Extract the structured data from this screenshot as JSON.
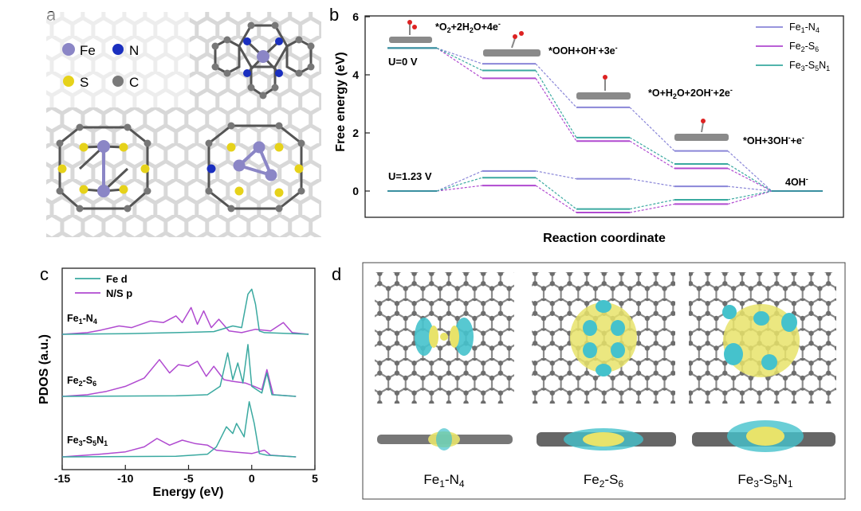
{
  "panels": {
    "a": "a",
    "b": "b",
    "c": "c",
    "d": "d"
  },
  "legend_a": {
    "fe": "Fe",
    "n": "N",
    "s": "S",
    "c": "C"
  },
  "colors": {
    "fe": "#8b86c6",
    "n": "#1a2fbf",
    "s": "#e6d21a",
    "c": "#7a7a7a",
    "fe1n4": "#8a86d8",
    "fe2s6": "#b04ad0",
    "fe3s5n1": "#3aa9a0",
    "fed": "#3aa9a0",
    "nsp": "#b04ad0",
    "iso_yellow": "#e8e36a",
    "iso_cyan": "#45c2cc"
  },
  "chart_data": [
    {
      "type": "line",
      "panel": "b",
      "title": "",
      "xlabel": "Reaction coordinate",
      "ylabel": "Free energy (eV)",
      "ylim": [
        -0.7,
        6
      ],
      "yticks": [
        0,
        2,
        4,
        6
      ],
      "steps": [
        "*O2+2H2O+4e-",
        "*OOH+OH-+3e-",
        "*O+H2O+2OH-+2e-",
        "*OH+3OH-+e-",
        "4OH-"
      ],
      "potential_labels": {
        "u0": "U=0 V",
        "u123": "U=1.23 V"
      },
      "step_labels": [
        {
          "base": "*O",
          "sub1": "2",
          "mid": "+2H",
          "sub2": "2",
          "tail": "O+4e",
          "sup": "-"
        },
        {
          "base": "*OOH+OH",
          "sup1": "-",
          "tail": "+3e",
          "sup2": "-"
        },
        {
          "base": "*O+H",
          "sub": "2",
          "mid": "O+2OH",
          "sup1": "-",
          "tail": "+2e",
          "sup2": "-"
        },
        {
          "base": "*OH+3OH",
          "sup1": "-",
          "tail": "+e",
          "sup2": "-"
        },
        {
          "base": "4OH",
          "sup": "-"
        }
      ],
      "series": [
        {
          "name": "Fe1-N4",
          "key": "fe1n4",
          "legend": {
            "a": "Fe",
            "b": "1",
            "c": "-N",
            "d": "4"
          },
          "u0": [
            4.92,
            4.38,
            2.88,
            1.38,
            0
          ],
          "u123": [
            0,
            0.69,
            0.42,
            0.16,
            0
          ]
        },
        {
          "name": "Fe2-S6",
          "key": "fe2s6",
          "legend": {
            "a": "Fe",
            "b": "2",
            "c": "-S",
            "d": "6"
          },
          "u0": [
            4.92,
            3.88,
            1.72,
            0.78,
            0
          ],
          "u123": [
            0,
            0.19,
            -0.74,
            -0.45,
            0
          ]
        },
        {
          "name": "Fe3-S5N1",
          "key": "fe3s5n1",
          "legend": {
            "a": "Fe",
            "b": "3",
            "c": "-S",
            "d": "5",
            "e": "N",
            "f": "1"
          },
          "u0": [
            4.92,
            4.15,
            1.84,
            0.93,
            0
          ],
          "u123": [
            0,
            0.46,
            -0.62,
            -0.3,
            0
          ]
        }
      ]
    },
    {
      "type": "line",
      "panel": "c",
      "xlabel": "Energy (eV)",
      "ylabel": "PDOS (a.u.)",
      "xlim": [
        -15,
        5
      ],
      "xticks": [
        -15,
        -10,
        -5,
        0,
        5
      ],
      "legend": [
        "Fe d",
        "N/S p"
      ],
      "systems": [
        {
          "label": {
            "a": "Fe",
            "b": "1",
            "c": "-N",
            "d": "4"
          },
          "fed": [
            [
              -15,
              0
            ],
            [
              -10,
              0.02
            ],
            [
              -6,
              0.05
            ],
            [
              -3,
              0.08
            ],
            [
              -1.5,
              0.25
            ],
            [
              -0.8,
              0.2
            ],
            [
              -0.3,
              1.2
            ],
            [
              0,
              1.35
            ],
            [
              0.3,
              0.9
            ],
            [
              0.6,
              0.1
            ],
            [
              1,
              0.05
            ],
            [
              4.5,
              0
            ]
          ],
          "nsp": [
            [
              -15,
              0
            ],
            [
              -13,
              0.05
            ],
            [
              -12,
              0.12
            ],
            [
              -10.5,
              0.25
            ],
            [
              -9.5,
              0.2
            ],
            [
              -8,
              0.4
            ],
            [
              -7,
              0.35
            ],
            [
              -6,
              0.55
            ],
            [
              -5.5,
              0.35
            ],
            [
              -4.8,
              0.8
            ],
            [
              -4.3,
              0.3
            ],
            [
              -3.8,
              0.7
            ],
            [
              -3.2,
              0.2
            ],
            [
              -2.6,
              0.45
            ],
            [
              -1.8,
              0.1
            ],
            [
              -0.8,
              0.05
            ],
            [
              0.3,
              0.15
            ],
            [
              1.5,
              0.1
            ],
            [
              2.5,
              0.35
            ],
            [
              3.2,
              0.05
            ],
            [
              4.5,
              0
            ]
          ]
        },
        {
          "label": {
            "a": "Fe",
            "b": "2",
            "c": "-S",
            "d": "6"
          },
          "fed": [
            [
              -15,
              0
            ],
            [
              -6,
              0.02
            ],
            [
              -3.5,
              0.05
            ],
            [
              -2.5,
              0.3
            ],
            [
              -1.9,
              1.3
            ],
            [
              -1.5,
              0.5
            ],
            [
              -1.1,
              1.0
            ],
            [
              -0.7,
              0.4
            ],
            [
              -0.3,
              1.55
            ],
            [
              0,
              0.3
            ],
            [
              0.4,
              0.2
            ],
            [
              0.8,
              0.1
            ],
            [
              1.2,
              0.7
            ],
            [
              1.6,
              0.05
            ],
            [
              3.5,
              0
            ]
          ],
          "nsp": [
            [
              -15,
              0
            ],
            [
              -13,
              0.05
            ],
            [
              -11.5,
              0.15
            ],
            [
              -10,
              0.3
            ],
            [
              -8.5,
              0.55
            ],
            [
              -7.3,
              1.1
            ],
            [
              -6.5,
              0.7
            ],
            [
              -5.8,
              0.95
            ],
            [
              -5,
              0.9
            ],
            [
              -4.3,
              1.05
            ],
            [
              -3.6,
              0.6
            ],
            [
              -3,
              0.9
            ],
            [
              -2.2,
              0.5
            ],
            [
              -1.5,
              0.45
            ],
            [
              -0.5,
              0.4
            ],
            [
              0.2,
              0.3
            ],
            [
              0.8,
              0.2
            ],
            [
              1.2,
              0.8
            ],
            [
              1.7,
              0.05
            ],
            [
              3.5,
              0
            ]
          ]
        },
        {
          "label": {
            "a": "Fe",
            "b": "3",
            "c": "-S",
            "d": "5",
            "e": "N",
            "f": "1"
          },
          "fed": [
            [
              -15,
              0
            ],
            [
              -6,
              0.02
            ],
            [
              -3.5,
              0.08
            ],
            [
              -2.8,
              0.3
            ],
            [
              -2,
              0.9
            ],
            [
              -1.5,
              0.7
            ],
            [
              -1.2,
              1.0
            ],
            [
              -0.6,
              0.6
            ],
            [
              -0.2,
              1.65
            ],
            [
              0.2,
              1.0
            ],
            [
              0.6,
              0.1
            ],
            [
              1.2,
              0.05
            ],
            [
              3.5,
              0
            ]
          ],
          "nsp": [
            [
              -15,
              0
            ],
            [
              -12,
              0.08
            ],
            [
              -10,
              0.15
            ],
            [
              -8.5,
              0.3
            ],
            [
              -7.5,
              0.55
            ],
            [
              -6.5,
              0.35
            ],
            [
              -5.5,
              0.5
            ],
            [
              -4.5,
              0.4
            ],
            [
              -3.5,
              0.35
            ],
            [
              -2.8,
              0.2
            ],
            [
              -1.5,
              0.15
            ],
            [
              0,
              0.1
            ],
            [
              1,
              0.2
            ],
            [
              1.5,
              0.05
            ],
            [
              3.5,
              0
            ]
          ]
        }
      ]
    }
  ],
  "panel_d": {
    "captions": [
      {
        "a": "Fe",
        "b": "1",
        "c": "-N",
        "d": "4"
      },
      {
        "a": "Fe",
        "b": "2",
        "c": "-S",
        "d": "6"
      },
      {
        "a": "Fe",
        "b": "3",
        "c": "-S",
        "d": "5",
        "e": "N",
        "f": "1"
      }
    ]
  }
}
